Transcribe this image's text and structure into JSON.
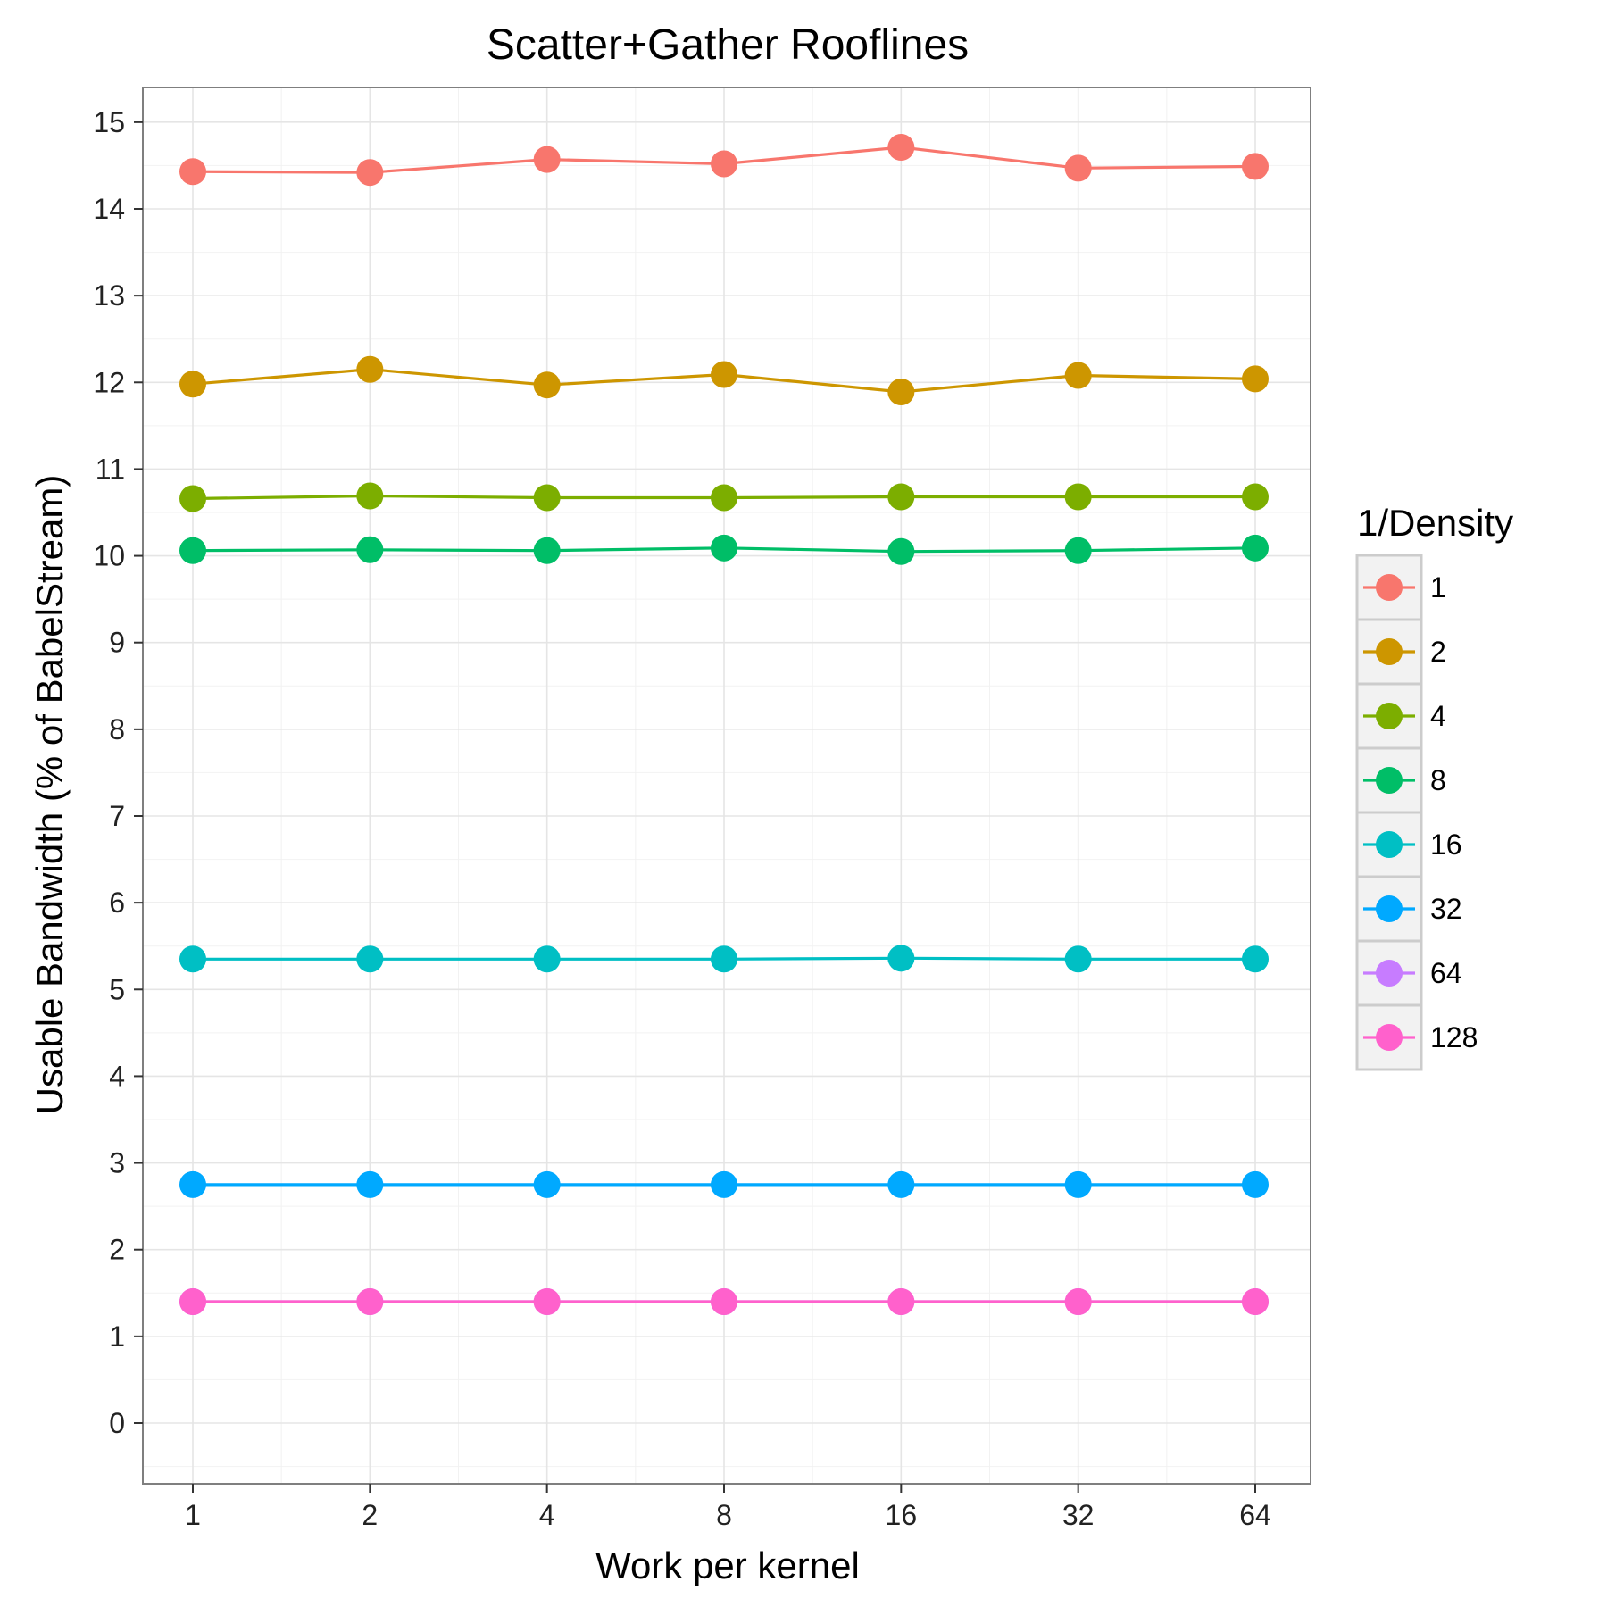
{
  "chart_data": {
    "type": "line",
    "title": "Scatter+Gather Rooflines",
    "xlabel": "Work per kernel",
    "ylabel": "Usable Bandwidth (% of BabelStream)",
    "x_scale": "log2",
    "x": [
      1,
      2,
      4,
      8,
      16,
      32,
      64
    ],
    "x_tick_labels": [
      "1",
      "2",
      "4",
      "8",
      "16",
      "32",
      "64"
    ],
    "ylim": [
      -0.7,
      15.4
    ],
    "y_ticks": [
      0,
      1,
      2,
      3,
      4,
      5,
      6,
      7,
      8,
      9,
      10,
      11,
      12,
      13,
      14,
      15
    ],
    "grid": true,
    "legend": {
      "title": "1/Density",
      "position": "right"
    },
    "series": [
      {
        "name": "1",
        "color": "#F8766D",
        "values": [
          14.43,
          14.42,
          14.57,
          14.52,
          14.71,
          14.47,
          14.49
        ]
      },
      {
        "name": "2",
        "color": "#CD9600",
        "values": [
          11.98,
          12.15,
          11.97,
          12.09,
          11.89,
          12.08,
          12.04
        ]
      },
      {
        "name": "4",
        "color": "#7CAE00",
        "values": [
          10.66,
          10.69,
          10.67,
          10.67,
          10.68,
          10.68,
          10.68
        ]
      },
      {
        "name": "8",
        "color": "#00BE67",
        "values": [
          10.06,
          10.07,
          10.06,
          10.09,
          10.05,
          10.06,
          10.09
        ]
      },
      {
        "name": "16",
        "color": "#00BFC4",
        "values": [
          5.35,
          5.35,
          5.35,
          5.35,
          5.36,
          5.35,
          5.35
        ]
      },
      {
        "name": "32",
        "color": "#00A9FF",
        "values": [
          2.75,
          2.75,
          2.75,
          2.75,
          2.75,
          2.75,
          2.75
        ]
      },
      {
        "name": "64",
        "color": "#C77CFF",
        "values": [
          1.4,
          1.4,
          1.4,
          1.4,
          1.4,
          1.4,
          1.4
        ]
      },
      {
        "name": "128",
        "color": "#FF61CC",
        "values": [
          1.4,
          1.4,
          1.4,
          1.4,
          1.4,
          1.4,
          1.4
        ]
      }
    ]
  }
}
